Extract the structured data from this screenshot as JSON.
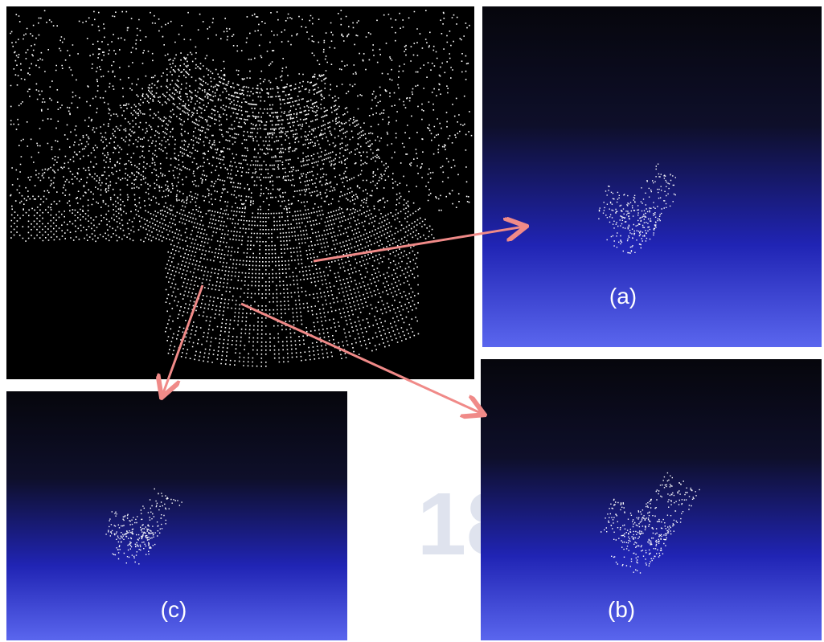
{
  "watermark": "18",
  "panels": [
    {
      "label": "(a)"
    },
    {
      "label": "(b)"
    },
    {
      "label": "(c)"
    }
  ]
}
